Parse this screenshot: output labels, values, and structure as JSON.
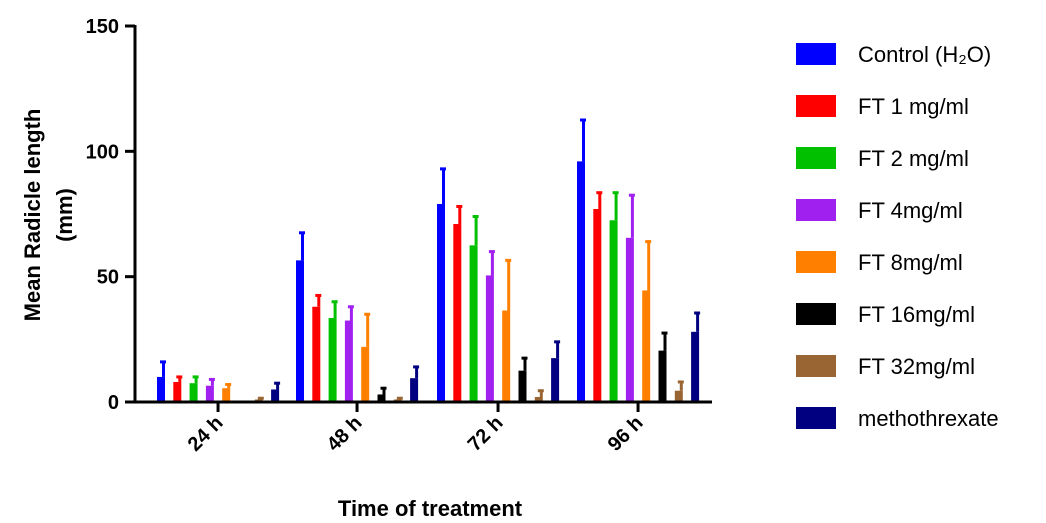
{
  "chart_data": {
    "type": "bar",
    "xlabel": "Time of treatment",
    "ylabel_line1": "Mean Radicle length",
    "ylabel_line2": "(mm)",
    "ylim": [
      0,
      150
    ],
    "yticks": [
      0,
      50,
      100,
      150
    ],
    "categories": [
      "24 h",
      "48 h",
      "72 h",
      "96 h"
    ],
    "legend_position": "right",
    "series": [
      {
        "name": "Control (H₂O)",
        "color": "#0000ff",
        "values": [
          10,
          56.5,
          79,
          96
        ],
        "errors": [
          6,
          11,
          14,
          16.5
        ]
      },
      {
        "name": "FT 1 mg/ml",
        "color": "#ff0000",
        "values": [
          8,
          38,
          71,
          77
        ],
        "errors": [
          2,
          4.5,
          7,
          6.5
        ]
      },
      {
        "name": "FT 2 mg/ml",
        "color": "#00c000",
        "values": [
          7.5,
          33.5,
          62.5,
          72.5
        ],
        "errors": [
          2.5,
          6.5,
          11.5,
          11
        ]
      },
      {
        "name": "FT 4mg/ml",
        "color": "#a020f0",
        "values": [
          6.5,
          32.5,
          50.5,
          65.5
        ],
        "errors": [
          2.5,
          5.5,
          9.5,
          17
        ]
      },
      {
        "name": "FT 8mg/ml",
        "color": "#ff8000",
        "values": [
          5.5,
          22,
          36.5,
          44.5
        ],
        "errors": [
          1.5,
          13,
          20,
          19.5
        ]
      },
      {
        "name": "FT 16mg/ml",
        "color": "#000000",
        "values": [
          0,
          3,
          12.5,
          20.5
        ],
        "errors": [
          0,
          2.5,
          5,
          7
        ]
      },
      {
        "name": "FT 32mg/ml",
        "color": "#996633",
        "values": [
          1,
          1,
          2,
          4.5
        ],
        "errors": [
          0.5,
          0.5,
          2.5,
          3.5
        ]
      },
      {
        "name": "methothrexate",
        "color": "#000080",
        "values": [
          5,
          9.5,
          17.5,
          28
        ],
        "errors": [
          2.5,
          4.5,
          6.5,
          7.5
        ]
      }
    ]
  }
}
